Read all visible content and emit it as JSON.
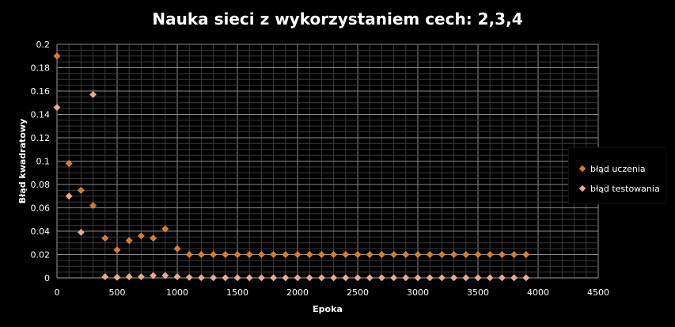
{
  "chart_data": {
    "type": "scatter",
    "title": "Nauka sieci z wykorzystaniem cech: 2,3,4",
    "xlabel": "Epoka",
    "ylabel": "Błąd kwadratowy",
    "xlim": [
      0,
      4500
    ],
    "ylim": [
      0,
      0.2
    ],
    "x_ticks": [
      "0",
      "500",
      "1000",
      "1500",
      "2000",
      "2500",
      "3000",
      "3500",
      "4000",
      "4500"
    ],
    "y_ticks": [
      "0",
      "0.02",
      "0.04",
      "0.06",
      "0.08",
      "0.1",
      "0.12",
      "0.14",
      "0.16",
      "0.18",
      "0.2"
    ],
    "grid": true,
    "legend_position": "right",
    "series": [
      {
        "name": "błąd uczenia",
        "color": "#e07820",
        "x": [
          0,
          100,
          200,
          300,
          400,
          500,
          600,
          700,
          800,
          900,
          1000,
          1100,
          1200,
          1300,
          1400,
          1500,
          1600,
          1700,
          1800,
          1900,
          2000,
          2100,
          2200,
          2300,
          2400,
          2500,
          2600,
          2700,
          2800,
          2900,
          3000,
          3100,
          3200,
          3300,
          3400,
          3500,
          3600,
          3700,
          3800,
          3900
        ],
        "values": [
          0.19,
          0.098,
          0.075,
          0.062,
          0.034,
          0.024,
          0.032,
          0.036,
          0.034,
          0.042,
          0.025,
          0.02,
          0.02,
          0.02,
          0.02,
          0.02,
          0.02,
          0.02,
          0.02,
          0.02,
          0.02,
          0.02,
          0.02,
          0.02,
          0.02,
          0.02,
          0.02,
          0.02,
          0.02,
          0.02,
          0.02,
          0.02,
          0.02,
          0.02,
          0.02,
          0.02,
          0.02,
          0.02,
          0.02,
          0.02
        ]
      },
      {
        "name": "błąd testowania",
        "color": "#f0a888",
        "x": [
          0,
          100,
          200,
          300,
          400,
          500,
          600,
          700,
          800,
          900,
          1000,
          1100,
          1200,
          1300,
          1400,
          1500,
          1600,
          1700,
          1800,
          1900,
          2000,
          2100,
          2200,
          2300,
          2400,
          2500,
          2600,
          2700,
          2800,
          2900,
          3000,
          3100,
          3200,
          3300,
          3400,
          3500,
          3600,
          3700,
          3800,
          3900
        ],
        "values": [
          0.146,
          0.07,
          0.039,
          0.157,
          0.001,
          0.0005,
          0.001,
          0.001,
          0.002,
          0.002,
          0.001,
          0.0005,
          0.0002,
          0.0001,
          0.0001,
          0.0001,
          0.0001,
          0.0001,
          0.0001,
          0.0001,
          0.0001,
          0.0001,
          0.0001,
          0.0001,
          0.0001,
          0.0001,
          0.0001,
          0.0001,
          0.0001,
          0.0001,
          0.0001,
          0.0001,
          0.0001,
          0.0001,
          0.0001,
          0.0001,
          0.0001,
          0.0001,
          0.0001,
          0.0001
        ]
      }
    ]
  }
}
